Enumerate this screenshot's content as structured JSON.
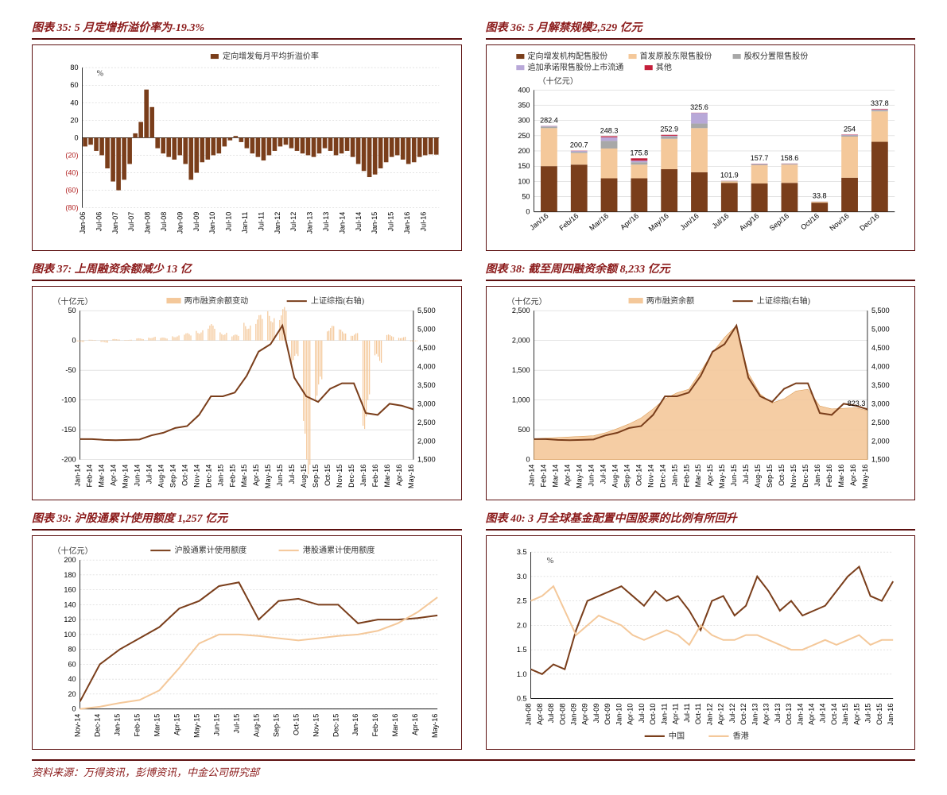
{
  "footnote": "资料来源：万得资讯，彭博资讯，中金公司研究部",
  "colors": {
    "dark_brown": "#7a3e1b",
    "brown": "#8b4513",
    "peach": "#f4c89a",
    "orange": "#e8a05a",
    "red": "#c41e3a",
    "grey": "#a8a8a8",
    "purple": "#b8a8d8",
    "title_red": "#8b1a1a",
    "border": "#5c1010",
    "grid": "#c8c8c8",
    "neg_red": "#b22222"
  },
  "chart35": {
    "title": "图表 35: 5 月定增折溢价率为-19.3%",
    "legend": "定向增发每月平均折溢价率",
    "unit": "%",
    "type": "bar",
    "ylim": [
      -80,
      80
    ],
    "ytick_step": 20,
    "x_labels": [
      "Jan-06",
      "Jul-06",
      "Jan-07",
      "Jul-07",
      "Jan-08",
      "Jul-08",
      "Jan-09",
      "Jul-09",
      "Jan-10",
      "Jul-10",
      "Jan-11",
      "Jul-11",
      "Jan-12",
      "Jul-12",
      "Jan-13",
      "Jul-13",
      "Jan-14",
      "Jul-14",
      "Jan-15",
      "Jul-15",
      "Jan-16",
      "Jul-16"
    ],
    "values": [
      -10,
      -8,
      -15,
      -20,
      -35,
      -50,
      -60,
      -48,
      -30,
      5,
      18,
      55,
      35,
      -12,
      -18,
      -22,
      -25,
      -20,
      -30,
      -48,
      -40,
      -28,
      -25,
      -20,
      -18,
      -10,
      -3,
      2,
      -5,
      -12,
      -18,
      -22,
      -26,
      -20,
      -15,
      -10,
      -8,
      -12,
      -15,
      -18,
      -20,
      -22,
      -18,
      -12,
      -15,
      -20,
      -18,
      -15,
      -22,
      -30,
      -38,
      -45,
      -42,
      -35,
      -28,
      -22,
      -20,
      -25,
      -30,
      -28,
      -22,
      -20,
      -19,
      -19.3
    ],
    "bar_color": "#7a3e1b",
    "background": "#ffffff"
  },
  "chart36": {
    "title": "图表 36: 5 月解禁规模2,529 亿元",
    "unit": "（十亿元）",
    "type": "stacked_bar",
    "legend_items": [
      {
        "label": "定向增发机构配售股份",
        "color": "#7a3e1b"
      },
      {
        "label": "首发原股东限售股份",
        "color": "#f4c89a"
      },
      {
        "label": "股权分置限售股份",
        "color": "#a8a8a8"
      },
      {
        "label": "追加承诺限售股份上市流通",
        "color": "#b8a8d8"
      },
      {
        "label": "其他",
        "color": "#c41e3a"
      }
    ],
    "ylim": [
      0,
      400
    ],
    "ytick_step": 50,
    "categories": [
      "Jan/16",
      "Feb/16",
      "Mar/16",
      "Apr/16",
      "May/16",
      "Jun/16",
      "Jul/16",
      "Aug/16",
      "Sep/16",
      "Oct/16",
      "Nov/16",
      "Dec/16"
    ],
    "totals": [
      282.4,
      200.7,
      248.3,
      175.8,
      252.9,
      325.6,
      101.9,
      157.7,
      158.6,
      33.8,
      254.0,
      337.8
    ],
    "stacks": [
      [
        150,
        125,
        5,
        2,
        0.4
      ],
      [
        155,
        38,
        4,
        3,
        0.7
      ],
      [
        110,
        98,
        25,
        12,
        3.3
      ],
      [
        110,
        45,
        8,
        5,
        7.8
      ],
      [
        140,
        100,
        8,
        2,
        2.9
      ],
      [
        130,
        145,
        15,
        35,
        0.6
      ],
      [
        95,
        5,
        1,
        0.5,
        0.4
      ],
      [
        93,
        60,
        3,
        1,
        0.7
      ],
      [
        95,
        60,
        2,
        1,
        0.6
      ],
      [
        30,
        3,
        0.5,
        0.2,
        0.1
      ],
      [
        112,
        135,
        4,
        2,
        1
      ],
      [
        230,
        100,
        4,
        2,
        1.8
      ]
    ],
    "background": "#ffffff"
  },
  "chart37": {
    "title": "图表 37:  上周融资余额减少 13 亿",
    "unit": "（十亿元）",
    "type": "combo_bar_line_dual",
    "legend_items": [
      {
        "label": "两市融资余额变动",
        "color": "#f4c89a",
        "type": "bar"
      },
      {
        "label": "上证综指(右轴)",
        "color": "#7a3e1b",
        "type": "line"
      }
    ],
    "ylim_left": [
      -200,
      50
    ],
    "ytick_left": 50,
    "ylim_right": [
      1500,
      5500
    ],
    "ytick_right": 500,
    "x_labels": [
      "Jan-14",
      "Feb-14",
      "Mar-14",
      "Apr-14",
      "May-14",
      "Jun-14",
      "Jul-14",
      "Aug-14",
      "Sep-14",
      "Oct-14",
      "Nov-14",
      "Dec-14",
      "Jan-15",
      "Feb-15",
      "Mar-15",
      "Apr-15",
      "May-15",
      "Jun-15",
      "Jul-15",
      "Aug-15",
      "Sep-15",
      "Oct-15",
      "Nov-15",
      "Dec-15",
      "Jan-16",
      "Feb-16",
      "Mar-16",
      "Apr-16",
      "May-16"
    ],
    "bars": [
      -2,
      1,
      -3,
      2,
      1,
      3,
      5,
      4,
      7,
      10,
      15,
      22,
      12,
      8,
      25,
      35,
      40,
      45,
      -30,
      -180,
      -80,
      20,
      15,
      10,
      -120,
      -30,
      8,
      5,
      -1.3
    ],
    "line": [
      2050,
      2050,
      2030,
      2020,
      2030,
      2040,
      2150,
      2220,
      2350,
      2400,
      2700,
      3200,
      3200,
      3300,
      3750,
      4400,
      4600,
      5100,
      3700,
      3200,
      3050,
      3400,
      3550,
      3550,
      2750,
      2700,
      3000,
      2950,
      2850
    ],
    "background": "#ffffff"
  },
  "chart38": {
    "title": "图表 38:  截至周四融资余额 8,233 亿元",
    "unit": "（十亿元）",
    "type": "area_line_dual",
    "legend_items": [
      {
        "label": "两市融资余额",
        "color": "#f4c89a",
        "type": "area"
      },
      {
        "label": "上证综指(右轴)",
        "color": "#7a3e1b",
        "type": "line"
      }
    ],
    "ylim_left": [
      0,
      2500
    ],
    "ytick_left": 500,
    "ylim_right": [
      1500,
      5500
    ],
    "ytick_right": 500,
    "end_label": "823.3",
    "x_labels": [
      "Jan-14",
      "Feb-14",
      "Mar-14",
      "Apr-14",
      "May-14",
      "Jun-14",
      "Jul-14",
      "Aug-14",
      "Sep-14",
      "Oct-14",
      "Nov-14",
      "Dec-14",
      "Jan-15",
      "Feb-15",
      "Mar-15",
      "Apr-15",
      "May-15",
      "Jun-15",
      "Jul-15",
      "Aug-15",
      "Sep-15",
      "Oct-15",
      "Nov-15",
      "Dec-15",
      "Jan-16",
      "Feb-16",
      "Mar-16",
      "Apr-16",
      "May-16"
    ],
    "area": [
      350,
      360,
      370,
      380,
      390,
      400,
      450,
      520,
      600,
      700,
      850,
      1020,
      1120,
      1180,
      1480,
      1800,
      2050,
      2250,
      1450,
      1100,
      950,
      1020,
      1150,
      1180,
      900,
      850,
      860,
      870,
      823.3
    ],
    "line": [
      2050,
      2050,
      2030,
      2020,
      2030,
      2040,
      2150,
      2220,
      2350,
      2400,
      2700,
      3200,
      3200,
      3300,
      3750,
      4400,
      4600,
      5100,
      3700,
      3200,
      3050,
      3400,
      3550,
      3550,
      2750,
      2700,
      3000,
      2950,
      2850
    ],
    "background": "#ffffff"
  },
  "chart39": {
    "title": "图表 39:  沪股通累计使用额度 1,257 亿元",
    "unit": "（十亿元）",
    "type": "line",
    "legend_items": [
      {
        "label": "沪股通累计使用额度",
        "color": "#7a3e1b"
      },
      {
        "label": "港股通累计使用额度",
        "color": "#f4c89a"
      }
    ],
    "ylim": [
      0,
      200
    ],
    "ytick_step": 20,
    "x_labels": [
      "Nov-14",
      "Dec-14",
      "Jan-15",
      "Feb-15",
      "Mar-15",
      "Apr-15",
      "May-15",
      "Jun-15",
      "Jul-15",
      "Aug-15",
      "Sep-15",
      "Oct-15",
      "Nov-15",
      "Dec-15",
      "Jan-16",
      "Feb-16",
      "Mar-16",
      "Apr-16",
      "May-16"
    ],
    "line1": [
      10,
      60,
      80,
      95,
      110,
      135,
      145,
      165,
      170,
      120,
      145,
      148,
      140,
      140,
      115,
      120,
      120,
      122,
      125.7
    ],
    "line2": [
      0,
      3,
      8,
      12,
      25,
      55,
      88,
      100,
      100,
      98,
      95,
      92,
      95,
      98,
      100,
      105,
      115,
      130,
      150
    ],
    "background": "#ffffff"
  },
  "chart40": {
    "title": "图表 40: 3 月全球基金配置中国股票的比例有所回升",
    "unit": "%",
    "type": "line",
    "legend_items": [
      {
        "label": "中国",
        "color": "#7a3e1b"
      },
      {
        "label": "香港",
        "color": "#f4c89a"
      }
    ],
    "ylim": [
      0.5,
      3.5
    ],
    "ytick_step": 0.5,
    "x_labels": [
      "Jan-08",
      "Apr-08",
      "Jul-08",
      "Oct-08",
      "Jan-09",
      "Apr-09",
      "Jul-09",
      "Oct-09",
      "Jan-10",
      "Apr-10",
      "Jul-10",
      "Oct-10",
      "Jan-11",
      "Apr-11",
      "Jul-11",
      "Oct-11",
      "Jan-12",
      "Apr-12",
      "Jul-12",
      "Oct-12",
      "Jan-13",
      "Apr-13",
      "Jul-13",
      "Oct-13",
      "Jan-14",
      "Apr-14",
      "Jul-14",
      "Oct-14",
      "Jan-15",
      "Apr-15",
      "Jul-15",
      "Oct-15",
      "Jan-16"
    ],
    "line1": [
      1.1,
      1.0,
      1.2,
      1.1,
      1.9,
      2.5,
      2.6,
      2.7,
      2.8,
      2.6,
      2.4,
      2.7,
      2.5,
      2.6,
      2.3,
      1.9,
      2.5,
      2.6,
      2.2,
      2.4,
      3.0,
      2.7,
      2.3,
      2.5,
      2.2,
      2.3,
      2.4,
      2.7,
      3.0,
      3.2,
      2.6,
      2.5,
      2.9
    ],
    "line2": [
      2.5,
      2.6,
      2.8,
      2.3,
      1.8,
      2.0,
      2.2,
      2.1,
      2.0,
      1.8,
      1.7,
      1.8,
      1.9,
      1.8,
      1.6,
      2.0,
      1.8,
      1.7,
      1.7,
      1.8,
      1.8,
      1.7,
      1.6,
      1.5,
      1.5,
      1.6,
      1.7,
      1.6,
      1.7,
      1.8,
      1.6,
      1.7,
      1.7
    ],
    "legend_position": "bottom",
    "background": "#ffffff"
  }
}
